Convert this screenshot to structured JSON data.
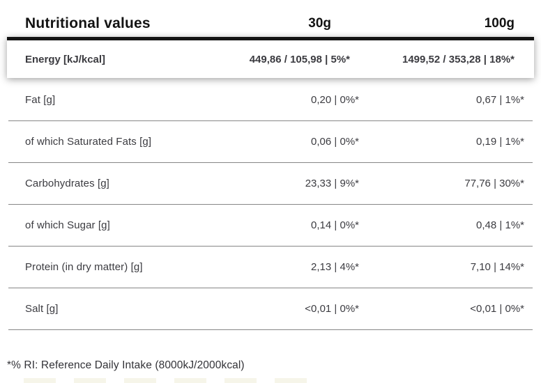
{
  "table": {
    "header": {
      "label": "Nutritional values",
      "col_30g": "30g",
      "col_100g": "100g"
    },
    "energy_row": {
      "label": "Energy [kJ/kcal]",
      "per_30g": "449,86 / 105,98 | 5%*",
      "per_100g": "1499,52 / 353,28 | 18%*"
    },
    "rows": [
      {
        "label": "Fat [g]",
        "per_30g": "0,20 | 0%*",
        "per_100g": "0,67 | 1%*"
      },
      {
        "label": "of which Saturated Fats [g]",
        "per_30g": "0,06 | 0%*",
        "per_100g": "0,19 | 1%*"
      },
      {
        "label": "Carbohydrates [g]",
        "per_30g": "23,33 | 9%*",
        "per_100g": "77,76 | 30%*"
      },
      {
        "label": "of which Sugar [g]",
        "per_30g": "0,14 | 0%*",
        "per_100g": "0,48 | 1%*"
      },
      {
        "label": "Protein (in dry matter) [g]",
        "per_30g": "2,13 | 4%*",
        "per_100g": "7,10 | 14%*"
      },
      {
        "label": "Salt [g]",
        "per_30g": "<0,01 | 0%*",
        "per_100g": "<0,01 | 0%*"
      }
    ],
    "footnote": "*% RI: Reference Daily Intake (8000kJ/2000kcal)",
    "colors": {
      "text": "#3b3b40",
      "heading": "#131313",
      "divider": "#868686",
      "header_bar": "#131313",
      "background": "#ffffff"
    }
  }
}
